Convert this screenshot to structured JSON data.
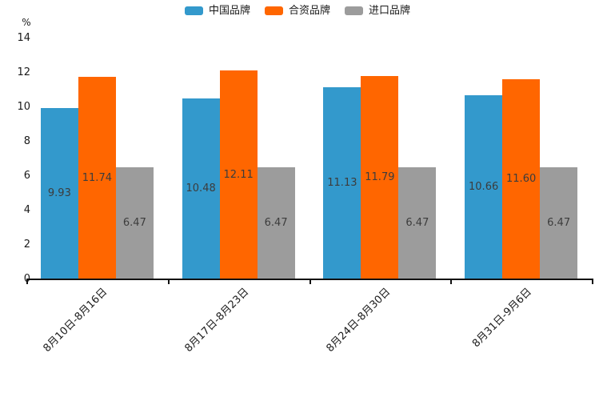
{
  "chart_data": {
    "type": "bar",
    "title": "",
    "unit_label": "%",
    "categories": [
      "8月10日-8月16日",
      "8月17日-8月23日",
      "8月24日-8月30日",
      "8月31日-9月6日"
    ],
    "series": [
      {
        "name": "中国品牌",
        "color": "#3399CC",
        "values": [
          9.93,
          10.48,
          11.13,
          10.66
        ]
      },
      {
        "name": "合资品牌",
        "color": "#FF6600",
        "values": [
          11.74,
          12.11,
          11.79,
          11.6
        ]
      },
      {
        "name": "进口品牌",
        "color": "#9C9C9C",
        "values": [
          6.47,
          6.47,
          6.47,
          6.47
        ]
      }
    ],
    "value_label_format": "2-decimals",
    "ylim": [
      0,
      14
    ],
    "yticks": [
      0,
      2,
      4,
      6,
      8,
      10,
      12,
      14
    ],
    "grid": false,
    "legend_position": "top-center",
    "value_labels_position": "center-of-bar",
    "axis_color": "#111111",
    "label_color": "#1a1a1a",
    "value_label_color": "#3c3c3c"
  }
}
